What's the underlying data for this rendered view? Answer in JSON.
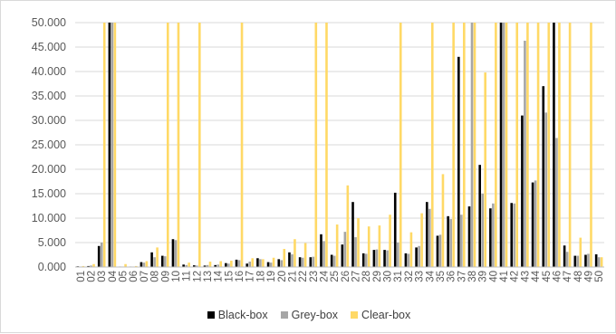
{
  "chart_data": {
    "type": "bar",
    "title": "",
    "xlabel": "",
    "ylabel": "",
    "ylim": [
      0,
      50000
    ],
    "y_ticks": [
      "0.000",
      "5.000",
      "10.000",
      "15.000",
      "20.000",
      "25.000",
      "30.000",
      "35.000",
      "40.000",
      "45.000",
      "50.000"
    ],
    "y_tick_values": [
      0,
      5000,
      10000,
      15000,
      20000,
      25000,
      30000,
      35000,
      40000,
      45000,
      50000
    ],
    "grid": "horizontal",
    "legend_position": "bottom",
    "categories": [
      "01",
      "02",
      "03",
      "04",
      "05",
      "06",
      "07",
      "08",
      "09",
      "10",
      "11",
      "12",
      "13",
      "14",
      "15",
      "16",
      "17",
      "18",
      "19",
      "20",
      "21",
      "22",
      "23",
      "24",
      "25",
      "26",
      "27",
      "28",
      "29",
      "30",
      "31",
      "32",
      "33",
      "34",
      "35",
      "36",
      "37",
      "38",
      "39",
      "40",
      "41",
      "42",
      "43",
      "44",
      "45",
      "46",
      "47",
      "48",
      "49",
      "50"
    ],
    "series": [
      {
        "name": "Black-box",
        "color": "#000000",
        "values": [
          150,
          200,
          4300,
          50000,
          100,
          100,
          1000,
          3000,
          2300,
          5700,
          500,
          350,
          300,
          400,
          800,
          1500,
          700,
          1800,
          1000,
          1600,
          3000,
          2000,
          2000,
          6700,
          2500,
          4600,
          13300,
          2800,
          3500,
          3500,
          15200,
          2800,
          4000,
          13300,
          6400,
          10400,
          43000,
          12400,
          20900,
          12000,
          50000,
          13100,
          31000,
          17300,
          37000,
          50000,
          4400,
          2300,
          2500,
          2600
        ]
      },
      {
        "name": "Grey-box",
        "color": "#a6a6a6",
        "values": [
          100,
          300,
          5000,
          50000,
          100,
          100,
          900,
          2000,
          2200,
          5500,
          400,
          300,
          400,
          500,
          700,
          1400,
          1100,
          1600,
          900,
          1400,
          2600,
          1900,
          2100,
          5300,
          2300,
          7200,
          6100,
          2700,
          3600,
          3400,
          5000,
          2700,
          4300,
          11900,
          6600,
          9800,
          10700,
          50000,
          15000,
          13000,
          50000,
          13000,
          46300,
          17700,
          31600,
          26400,
          3100,
          2300,
          2700,
          2000
        ]
      },
      {
        "name": "Clear-box",
        "color": "#ffd966",
        "values": [
          200,
          600,
          50000,
          50000,
          600,
          200,
          1200,
          4000,
          50000,
          50000,
          900,
          50000,
          1100,
          1200,
          1300,
          50000,
          1800,
          1600,
          1900,
          3700,
          5700,
          4900,
          50000,
          50000,
          8700,
          16700,
          10000,
          8300,
          8500,
          10700,
          50000,
          7100,
          11000,
          50000,
          19000,
          50000,
          50000,
          50000,
          39800,
          50000,
          50000,
          50000,
          50000,
          50000,
          50000,
          50000,
          50000,
          6000,
          50000,
          2000
        ]
      }
    ]
  }
}
